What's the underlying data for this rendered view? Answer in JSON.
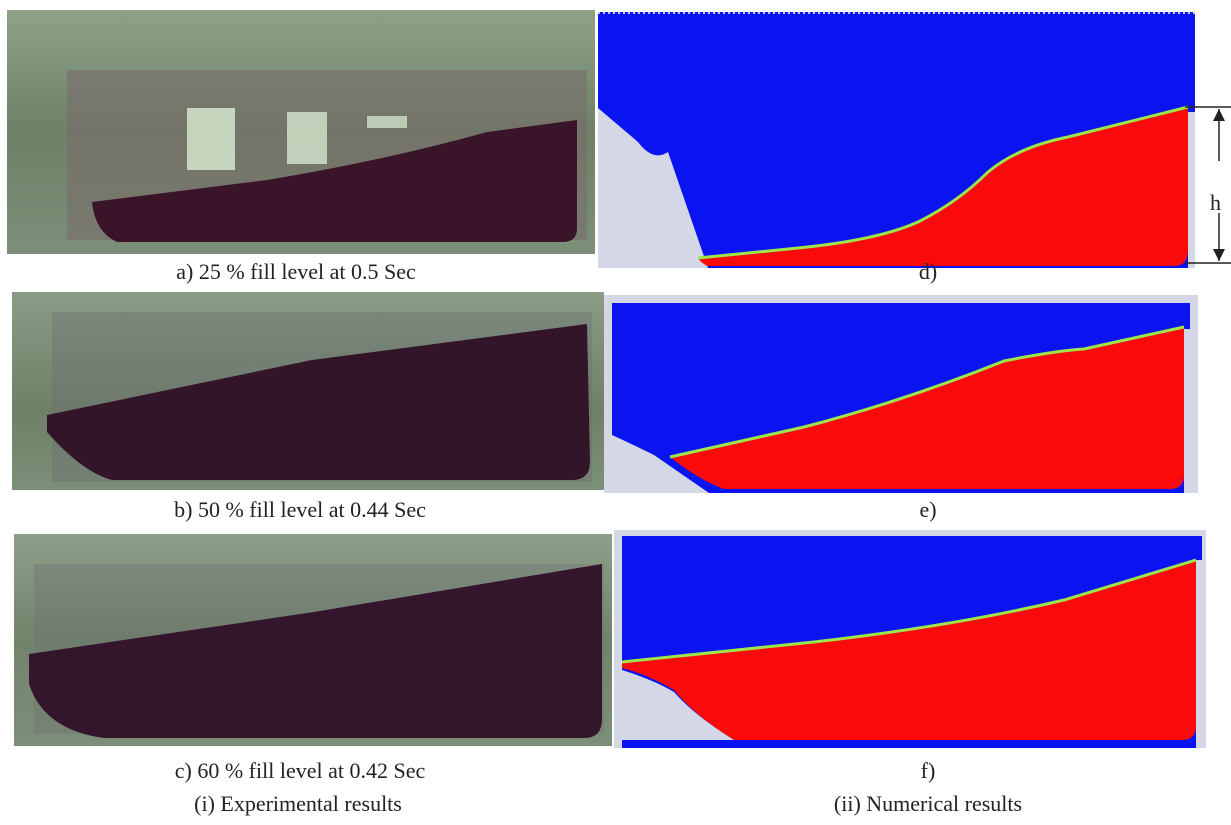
{
  "captions": {
    "a": "a) 25 % fill level at 0.5 Sec",
    "b": "b) 50 % fill level at 0.44 Sec",
    "c": "c) 60 % fill level at 0.42 Sec",
    "d": "d)",
    "e": "e)",
    "f": "f)"
  },
  "column_titles": {
    "left": "(i) Experimental results",
    "right": "(ii) Numerical results"
  },
  "dimension_label": "h",
  "colors": {
    "air": "#0a14f0",
    "liquid": "#fa0a0a",
    "interface": "#9ce64a",
    "solid": "#d4d8e6",
    "tank_glass": "#7d9076",
    "tank_liquid": "#3a1428"
  }
}
